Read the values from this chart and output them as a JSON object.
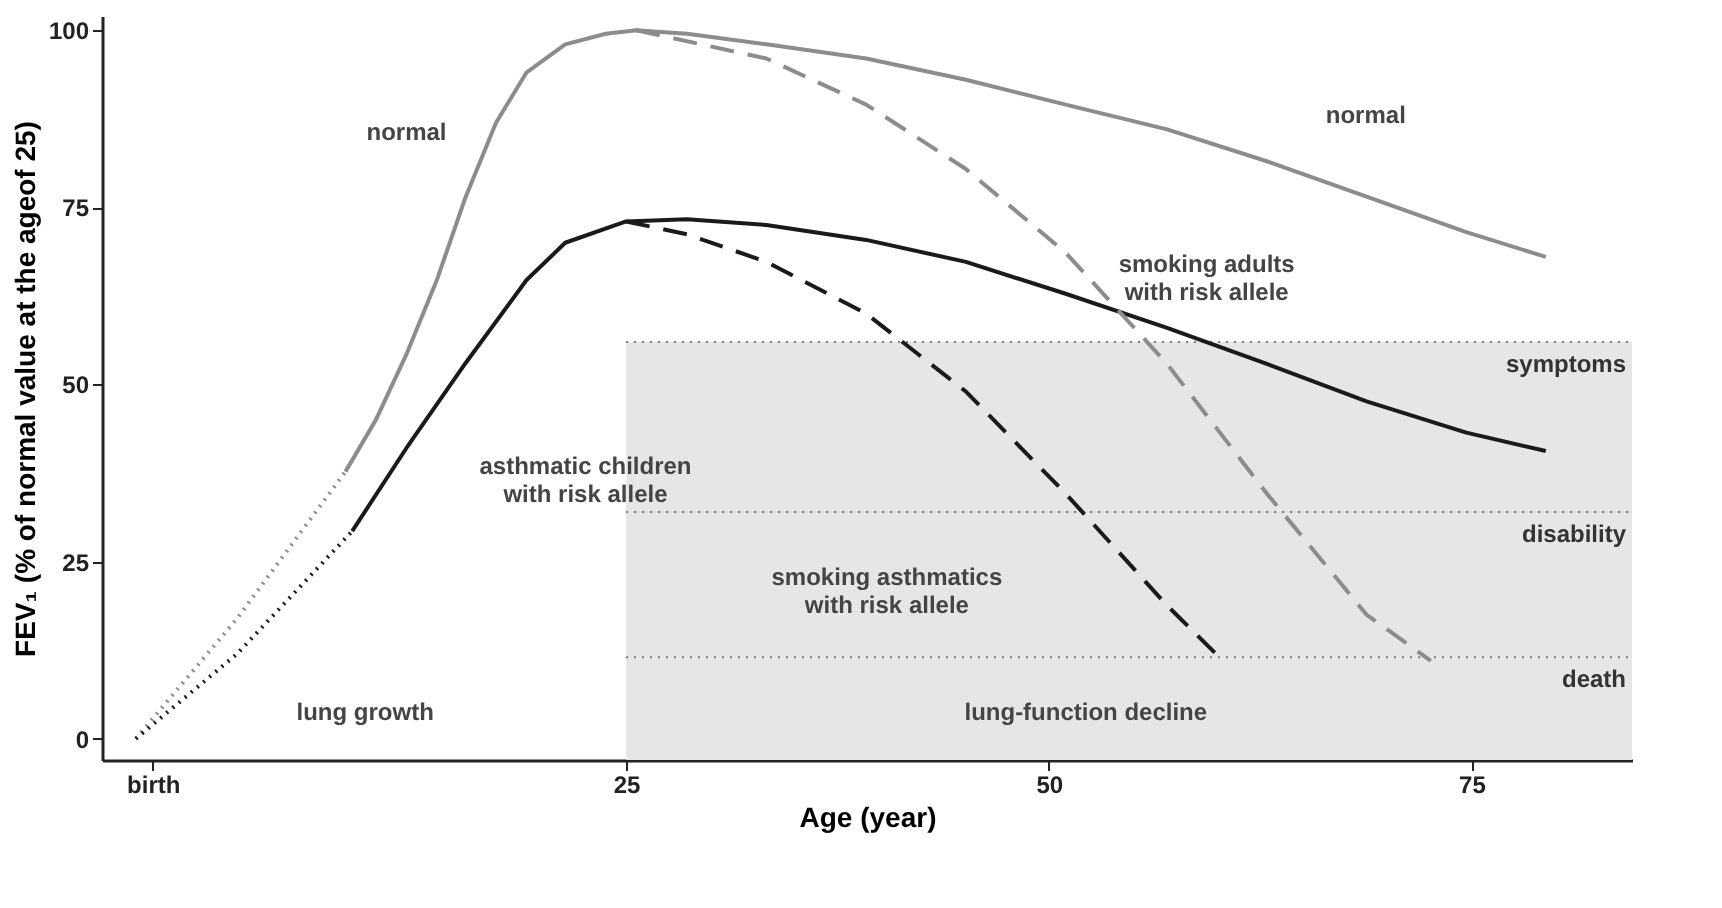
{
  "chart_data": {
    "type": "line",
    "xlabel": "Age (year)",
    "ylabel": "FEV₁ (% of normal value at the ageof  25)",
    "xlim": [
      -6,
      84.5
    ],
    "ylim": [
      -3,
      102
    ],
    "xticks": [
      {
        "value": -3,
        "label": "birth"
      },
      25,
      50,
      75
    ],
    "yticks": [
      0,
      25,
      50,
      75,
      100
    ],
    "series": [
      {
        "color": "#8c8c8c",
        "line_style": "dotted",
        "x": [
          -4,
          2,
          8.4
        ],
        "values": [
          0,
          17,
          37.7
        ]
      },
      {
        "color": "#8c8c8c",
        "line_style": "solid",
        "x": [
          8.4,
          10.2,
          12,
          13.8,
          15.5,
          17.3,
          19.1,
          21.4,
          23.8,
          25.6,
          28.6,
          33.3,
          39.2,
          45.1,
          51,
          57,
          62.9,
          68.8,
          74.7,
          79.4
        ],
        "values": [
          37.7,
          45,
          54.2,
          64.7,
          76.4,
          86.9,
          94,
          98,
          99.5,
          100,
          99.5,
          98,
          96,
          93,
          89.5,
          86,
          81.5,
          76.5,
          71.5,
          68
        ]
      },
      {
        "color": "#1a1a1a",
        "line_style": "dotted",
        "x": [
          -4,
          2,
          8.8
        ],
        "values": [
          0,
          12,
          29.3
        ]
      },
      {
        "color": "#1a1a1a",
        "line_style": "solid",
        "x": [
          8.8,
          12,
          15.5,
          19.1,
          21.4,
          25,
          28.6,
          33.3,
          39.2,
          45.1,
          51,
          57,
          62.9,
          68.8,
          74.7,
          79.4
        ],
        "values": [
          29.3,
          41,
          53,
          64.7,
          70,
          73,
          73.3,
          72.5,
          70.4,
          67.3,
          62.8,
          58,
          52.9,
          47.6,
          43.2,
          40.6
        ]
      },
      {
        "color": "#8c8c8c",
        "line_style": "dashed",
        "x": [
          25.6,
          33.3,
          39.2,
          45.1,
          51,
          57,
          62.9,
          68.8,
          72.6
        ],
        "values": [
          100,
          96,
          89.5,
          80.4,
          68.6,
          52.9,
          34.6,
          17.5,
          11
        ]
      },
      {
        "color": "#1a1a1a",
        "line_style": "dashed",
        "x": [
          25,
          28.6,
          33.3,
          39.2,
          45.1,
          51,
          57,
          60.1
        ],
        "values": [
          73,
          71.2,
          67.3,
          60,
          49,
          34.6,
          18.8,
          11.5
        ]
      }
    ],
    "ref_lines": [
      {
        "axis": "y",
        "value": 56,
        "label": "symptoms"
      },
      {
        "axis": "y",
        "value": 32,
        "label": "disability"
      },
      {
        "axis": "y",
        "value": 11.5,
        "label": "death"
      }
    ],
    "bands": [
      {
        "axis": "x",
        "from": 25,
        "to": 84.5,
        "color": "#e6e6e6"
      }
    ],
    "annotations": [
      "normal",
      "normal",
      "smoking adults\nwith risk allele",
      "asthmatic children\nwith risk allele",
      "smoking asthmatics\nwith risk allele",
      "lung growth",
      "lung-function decline"
    ]
  }
}
